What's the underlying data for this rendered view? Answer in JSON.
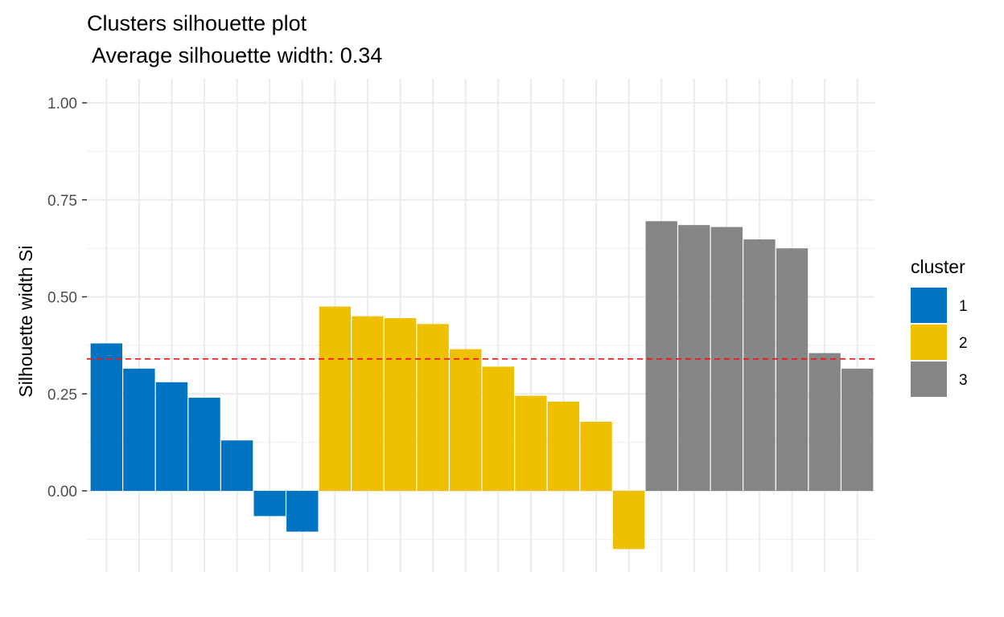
{
  "chart_data": {
    "type": "bar",
    "title": "Clusters silhouette plot",
    "subtitle": " Average silhouette width: 0.34",
    "xlabel": "",
    "ylabel": "Silhouette width Si",
    "ylim": [
      -0.2,
      1.05
    ],
    "yticks": [
      0.0,
      0.25,
      0.5,
      0.75,
      1.0
    ],
    "ytick_labels": [
      "0.00",
      "0.25",
      "0.50",
      "0.75",
      "1.00"
    ],
    "grid": true,
    "legend_position": "right",
    "average_line": 0.34,
    "average_line_color": "#e41a1c",
    "legend": {
      "title": "cluster",
      "items": [
        {
          "label": "1",
          "color": "#0073c2"
        },
        {
          "label": "2",
          "color": "#efc000"
        },
        {
          "label": "3",
          "color": "#868686"
        }
      ]
    },
    "series": [
      {
        "cluster": "1",
        "values": [
          0.38,
          0.315,
          0.28,
          0.24,
          0.13,
          -0.065,
          -0.105
        ]
      },
      {
        "cluster": "2",
        "values": [
          0.475,
          0.45,
          0.445,
          0.43,
          0.365,
          0.32,
          0.245,
          0.23,
          0.178,
          -0.15
        ]
      },
      {
        "cluster": "3",
        "values": [
          0.695,
          0.685,
          0.68,
          0.648,
          0.625,
          0.355,
          0.315
        ]
      }
    ]
  }
}
